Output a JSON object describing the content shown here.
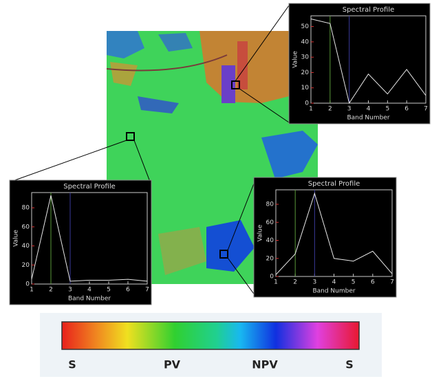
{
  "chart_data": [
    {
      "type": "line",
      "title": "Spectral Profile",
      "x_label": "Band Number",
      "y_label": "Value",
      "x": [
        1,
        2,
        3,
        4,
        5,
        6,
        7
      ],
      "values": [
        55,
        52,
        0,
        19,
        6,
        22,
        5
      ],
      "color": "#e8e8e8",
      "xlim": [
        1,
        7
      ],
      "xticks": [
        1,
        2,
        3,
        4,
        5,
        6,
        7
      ],
      "ylim": [
        0,
        57
      ],
      "yticks": [
        0,
        10,
        20,
        30,
        40,
        50
      ],
      "marker_lines": [
        {
          "x": 2,
          "color": "#5a9a3a"
        },
        {
          "x": 3,
          "color": "#3a3a9a"
        }
      ]
    },
    {
      "type": "line",
      "title": "Spectral Profile",
      "x_label": "Band Number",
      "y_label": "Value",
      "x": [
        1,
        2,
        3,
        4,
        5,
        6,
        7
      ],
      "values": [
        5,
        93,
        3,
        4,
        4,
        5,
        3
      ],
      "color": "#e8e8e8",
      "xlim": [
        1,
        7
      ],
      "xticks": [
        1,
        2,
        3,
        4,
        5,
        6,
        7
      ],
      "ylim": [
        0,
        96
      ],
      "yticks": [
        0,
        20,
        40,
        60,
        80
      ],
      "marker_lines": [
        {
          "x": 2,
          "color": "#5a9a3a"
        },
        {
          "x": 3,
          "color": "#3a3a9a"
        }
      ]
    },
    {
      "type": "line",
      "title": "Spectral Profile",
      "x_label": "Band Number",
      "y_label": "Value",
      "x": [
        1,
        2,
        3,
        4,
        5,
        6,
        7
      ],
      "values": [
        2,
        25,
        92,
        20,
        17,
        28,
        3
      ],
      "color": "#e8e8e8",
      "xlim": [
        1,
        7
      ],
      "xticks": [
        1,
        2,
        3,
        4,
        5,
        6,
        7
      ],
      "ylim": [
        0,
        96
      ],
      "yticks": [
        0,
        20,
        40,
        60,
        80
      ],
      "marker_lines": [
        {
          "x": 2,
          "color": "#5a9a3a"
        },
        {
          "x": 3,
          "color": "#3a3a9a"
        }
      ]
    }
  ],
  "colorbar": {
    "labels": [
      "S",
      "PV",
      "NPV",
      "S"
    ]
  }
}
